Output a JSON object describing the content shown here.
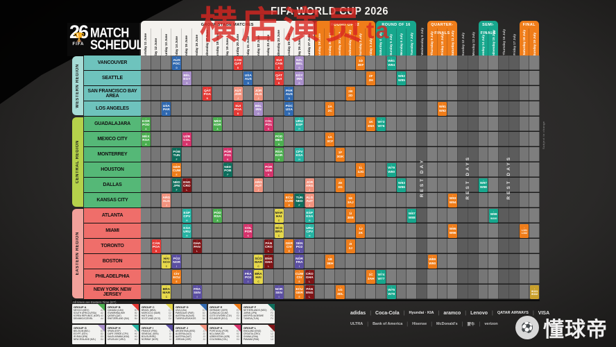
{
  "header": {
    "title": "FIFA WORLD CUP 2026",
    "logo_line1": "MATCH",
    "logo_line2": "SCHEDULE",
    "logo_year": "26",
    "logo_fifa": "FIFA"
  },
  "watermark": {
    "text": "横店演员",
    "suffix": "ta"
  },
  "footer": {
    "note": "All times are Eastern Time (ET)"
  },
  "fine_print": "Subject to change",
  "colors": {
    "A": "#4caf50",
    "B": "#e53935",
    "C": "#e6d84a",
    "D": "#3069b0",
    "E": "#ef7d1a",
    "F": "#0d6e5c",
    "G": "#a98fcb",
    "H": "#26b3a2",
    "I": "#5b4fa2",
    "J": "#f2937f",
    "K": "#d6336c",
    "L": "#7e1416",
    "R32": "#ef7d1a",
    "R16": "#17a78d",
    "QF": "#ef7d1a",
    "SF": "#17a78d",
    "BR": "#ef7d1a",
    "F_FINAL": "#c9a02c",
    "sec_group_bg": "#f4f2ee",
    "sec_orange": "#ef7d1a",
    "sec_teal": "#17a78d",
    "region_west": "#6ec3bd",
    "region_west_strip": "#a7dcd6",
    "region_central": "#55b877",
    "region_central_strip": "#b5d24b",
    "region_east": "#ef6e6a",
    "region_east_strip": "#f2a19b"
  },
  "sections": [
    {
      "key": "group",
      "label": "GROUP STAGE MATCHES",
      "start": 0,
      "span": 17,
      "style": "white"
    },
    {
      "key": "r32",
      "label": "ROUND OF 32",
      "start": 17,
      "span": 6,
      "style": "orange"
    },
    {
      "key": "r16",
      "label": "ROUND OF 16",
      "start": 23,
      "span": 4,
      "style": "teal"
    },
    {
      "key": "rest1",
      "label": "",
      "start": 27,
      "span": 1,
      "style": "rest"
    },
    {
      "key": "qf",
      "label": "QUARTER-FINALS",
      "start": 28,
      "span": 3,
      "style": "orange"
    },
    {
      "key": "rest2",
      "label": "",
      "start": 31,
      "span": 2,
      "style": "rest"
    },
    {
      "key": "sf",
      "label": "SEMI-FINALS",
      "start": 33,
      "span": 2,
      "style": "teal"
    },
    {
      "key": "rest3",
      "label": "",
      "start": 35,
      "span": 2,
      "style": "rest"
    },
    {
      "key": "final",
      "label": "FINAL",
      "start": 37,
      "span": 2,
      "style": "orange"
    }
  ],
  "dates": [
    "Thursday 11 June",
    "Friday 12 June",
    "Saturday 13 June",
    "Sunday 14 June",
    "Monday 15 June",
    "Tuesday 16 June",
    "Wednesday 17 June",
    "Thursday 18 June",
    "Friday 19 June",
    "Saturday 20 June",
    "Sunday 21 June",
    "Monday 22 June",
    "Tuesday 23 June",
    "Wednesday 24 June",
    "Thursday 25 June",
    "Friday 26 June",
    "Saturday 27 June",
    "Sunday 28 June",
    "Monday 29 June",
    "Tuesday 30 June",
    "Wednesday 1 July",
    "Thursday 2 July",
    "Friday 3 July",
    "Saturday 4 July",
    "Sunday 5 July",
    "Monday 6 July",
    "Tuesday 7 July",
    "Wednesday 8 July",
    "Thursday 9 July",
    "Friday 10 July",
    "Saturday 11 July",
    "Sunday 12 July",
    "Monday 13 July",
    "Tuesday 14 July",
    "Wednesday 15 July",
    "Thursday 16 July",
    "Friday 17 July",
    "Saturday 18 July",
    "Sunday 19 July"
  ],
  "rest_labels": [
    {
      "col": 27,
      "span": 1,
      "text": "REST DAY"
    },
    {
      "col": 31,
      "span": 2,
      "text": "REST DAYS"
    },
    {
      "col": 35,
      "span": 2,
      "text": "REST DAYS"
    }
  ],
  "regions": [
    {
      "name": "WESTERN REGION",
      "rows": 4
    },
    {
      "name": "CENTRAL REGION",
      "rows": 6
    },
    {
      "name": "EASTERN REGION",
      "rows": 6
    }
  ],
  "cities": [
    "VANCOUVER",
    "SEATTLE",
    "SAN FRANCISCO BAY AREA",
    "LOS ANGELES",
    "GUADALAJARA",
    "MEXICO CITY",
    "MONTERREY",
    "HOUSTON",
    "DALLAS",
    "KANSAS CITY",
    "ATLANTA",
    "MIAMI",
    "TORONTO",
    "BOSTON",
    "PHILADELPHIA",
    "NEW YORK NEW JERSEY"
  ],
  "cells": [
    [
      0,
      3,
      "D",
      "AUS",
      "POC"
    ],
    [
      0,
      9,
      "B",
      "CAN",
      "QAT"
    ],
    [
      0,
      13,
      "B",
      "SUI",
      "CAN"
    ],
    [
      0,
      15,
      "G",
      "NZL",
      "BEL"
    ],
    [
      0,
      21,
      "R32",
      "1D",
      "3EF"
    ],
    [
      0,
      24,
      "R16",
      "W81",
      "W84"
    ],
    [
      1,
      4,
      "G",
      "BEL",
      "EGY"
    ],
    [
      1,
      10,
      "D",
      "USA",
      "AUS"
    ],
    [
      1,
      13,
      "B",
      "QAT",
      "SUI"
    ],
    [
      1,
      15,
      "G",
      "EGY",
      "IRN"
    ],
    [
      1,
      22,
      "R32",
      "2F",
      "2H"
    ],
    [
      1,
      25,
      "R16",
      "W82",
      "W85"
    ],
    [
      2,
      6,
      "B",
      "QAT",
      "POA"
    ],
    [
      2,
      9,
      "J",
      "AUT",
      "JOR"
    ],
    [
      2,
      11,
      "J",
      "JOR",
      "ALG"
    ],
    [
      2,
      14,
      "D",
      "PAR",
      "AUS"
    ],
    [
      2,
      20,
      "R32",
      "2B",
      "2D"
    ],
    [
      3,
      2,
      "D",
      "USA",
      "PAR"
    ],
    [
      3,
      9,
      "B",
      "SUI",
      "POA"
    ],
    [
      3,
      11,
      "G",
      "BEL",
      "IRN"
    ],
    [
      3,
      14,
      "D",
      "POC",
      "USA"
    ],
    [
      3,
      18,
      "R32",
      "2A",
      "2C"
    ],
    [
      3,
      29,
      "QF",
      "W91",
      "W92"
    ],
    [
      4,
      0,
      "A",
      "KOR",
      "POD"
    ],
    [
      4,
      7,
      "A",
      "MEX",
      "KOR"
    ],
    [
      4,
      12,
      "K",
      "COL",
      "PO1"
    ],
    [
      4,
      15,
      "H",
      "URU",
      "ESP"
    ],
    [
      4,
      22,
      "R32",
      "1K",
      "3HA"
    ],
    [
      4,
      23,
      "R16",
      "W73",
      "W76"
    ],
    [
      5,
      0,
      "A",
      "MEX",
      "RSA"
    ],
    [
      5,
      4,
      "K",
      "UZB",
      "COL"
    ],
    [
      5,
      13,
      "A",
      "POD",
      "MEX"
    ],
    [
      5,
      18,
      "R32",
      "1A",
      "3CF"
    ],
    [
      6,
      3,
      "F",
      "POB",
      "TUN"
    ],
    [
      6,
      8,
      "K",
      "POR",
      "PO1"
    ],
    [
      6,
      13,
      "A",
      "RSA",
      "KOR"
    ],
    [
      6,
      15,
      "H",
      "CPV",
      "KSA"
    ],
    [
      6,
      19,
      "R32",
      "1F",
      "3GK"
    ],
    [
      7,
      3,
      "E",
      "GER",
      "CUW"
    ],
    [
      7,
      8,
      "F",
      "NED",
      "POB"
    ],
    [
      7,
      12,
      "K",
      "POR",
      "UZB"
    ],
    [
      7,
      21,
      "R32",
      "1L",
      "3JG"
    ],
    [
      7,
      24,
      "R16",
      "W79",
      "W80"
    ],
    [
      8,
      3,
      "F",
      "NED",
      "JPN"
    ],
    [
      8,
      4,
      "L",
      "ENG",
      "CRO"
    ],
    [
      8,
      11,
      "J",
      "ARG",
      "AUT"
    ],
    [
      8,
      16,
      "J",
      "JOR",
      "ARG"
    ],
    [
      8,
      19,
      "R32",
      "2E",
      "2G"
    ],
    [
      8,
      25,
      "R16",
      "W83",
      "W86"
    ],
    [
      8,
      33,
      "SF",
      "W97",
      "W98"
    ],
    [
      9,
      2,
      "J",
      "ARG",
      "ALG"
    ],
    [
      9,
      14,
      "E",
      "ECU",
      "CUW"
    ],
    [
      9,
      15,
      "F",
      "TUN",
      "NED"
    ],
    [
      9,
      16,
      "J",
      "ALG",
      "AUT"
    ],
    [
      9,
      20,
      "R32",
      "1E",
      "3AJ"
    ],
    [
      9,
      30,
      "QF",
      "W93",
      "W94"
    ],
    [
      10,
      4,
      "H",
      "ESP",
      "CPV"
    ],
    [
      10,
      7,
      "A",
      "POD",
      "RSA"
    ],
    [
      10,
      13,
      "C",
      "MAR",
      "HAI"
    ],
    [
      10,
      16,
      "H",
      "ESP",
      "KSA"
    ],
    [
      10,
      20,
      "R32",
      "1I",
      "3EB"
    ],
    [
      10,
      26,
      "R16",
      "W87",
      "W88"
    ],
    [
      10,
      34,
      "SF",
      "W99",
      "W100"
    ],
    [
      11,
      4,
      "H",
      "KSA",
      "URU"
    ],
    [
      11,
      10,
      "K",
      "COL",
      "POR"
    ],
    [
      11,
      13,
      "C",
      "SCO",
      "BRA"
    ],
    [
      11,
      16,
      "H",
      "URU",
      "CPV"
    ],
    [
      11,
      21,
      "R32",
      "1J",
      "2K"
    ],
    [
      11,
      30,
      "QF",
      "W95",
      "W96"
    ],
    [
      11,
      37,
      "BR",
      "L101",
      "L102"
    ],
    [
      12,
      1,
      "B",
      "CAN",
      "POA"
    ],
    [
      12,
      5,
      "L",
      "GHA",
      "PAN"
    ],
    [
      12,
      12,
      "L",
      "PAN",
      "CRO"
    ],
    [
      12,
      14,
      "E",
      "GER",
      "CIV"
    ],
    [
      12,
      15,
      "I",
      "SEN",
      "PO2"
    ],
    [
      12,
      20,
      "R32",
      "2I",
      "2J"
    ],
    [
      13,
      2,
      "C",
      "HAI",
      "SCO"
    ],
    [
      13,
      3,
      "I",
      "PO2",
      "NOR"
    ],
    [
      13,
      11,
      "C",
      "SCO",
      "MAR"
    ],
    [
      13,
      12,
      "L",
      "ENG",
      "GHA"
    ],
    [
      13,
      15,
      "I",
      "NOR",
      "FRA"
    ],
    [
      13,
      18,
      "R32",
      "1B",
      "3EH"
    ],
    [
      13,
      28,
      "QF",
      "W89",
      "W90"
    ],
    [
      14,
      3,
      "E",
      "CIV",
      "ECU"
    ],
    [
      14,
      10,
      "I",
      "FRA",
      "PO2"
    ],
    [
      14,
      11,
      "C",
      "BRA",
      "HAI"
    ],
    [
      14,
      15,
      "E",
      "CUW",
      "CIV"
    ],
    [
      14,
      16,
      "L",
      "CRO",
      "GHA"
    ],
    [
      14,
      22,
      "R32",
      "1C",
      "3AH"
    ],
    [
      14,
      23,
      "R16",
      "W74",
      "W77"
    ],
    [
      15,
      2,
      "C",
      "BRA",
      "MAR"
    ],
    [
      15,
      5,
      "I",
      "FRA",
      "SEN"
    ],
    [
      15,
      13,
      "I",
      "NOR",
      "SEN"
    ],
    [
      15,
      15,
      "E",
      "ECU",
      "GER"
    ],
    [
      15,
      16,
      "L",
      "PAN",
      "ENG"
    ],
    [
      15,
      19,
      "R32",
      "1G",
      "3DL"
    ],
    [
      15,
      24,
      "R16",
      "W75",
      "W78"
    ],
    [
      15,
      38,
      "F_FINAL",
      "W101",
      "W102"
    ]
  ],
  "groups": [
    {
      "name": "GROUP A",
      "color": "#4caf50",
      "teams": [
        [
          "MEXICO (MEX)",
          "A1"
        ],
        [
          "SOUTH AFRICA (RSA)",
          "A2"
        ],
        [
          "KOREA REPUBLIC (KOR)",
          "A3"
        ],
        [
          "DEN/MKD/CZE/IRL",
          "A4"
        ]
      ]
    },
    {
      "name": "GROUP B",
      "color": "#e53935",
      "teams": [
        [
          "CANADA (CAN)",
          "B1"
        ],
        [
          "ITA/NIR/WAL/BIH",
          "B2"
        ],
        [
          "QATAR (QAT)",
          "B3"
        ],
        [
          "SWITZERLAND (SUI)",
          "B4"
        ]
      ]
    },
    {
      "name": "GROUP C",
      "color": "#e6d84a",
      "teams": [
        [
          "BRAZIL (BRA)",
          "C1"
        ],
        [
          "MOROCCO (MAR)",
          "C2"
        ],
        [
          "HAITI (HAI)",
          "C3"
        ],
        [
          "SCOTLAND (SCO)",
          "C4"
        ]
      ]
    },
    {
      "name": "GROUP D",
      "color": "#3069b0",
      "teams": [
        [
          "USA (USA)",
          "D1"
        ],
        [
          "PARAGUAY (PAR)",
          "D2"
        ],
        [
          "AUSTRALIA (AUS)",
          "D3"
        ],
        [
          "TUR/ROU/SVK/KOS",
          "D4"
        ]
      ]
    },
    {
      "name": "GROUP E",
      "color": "#ef7d1a",
      "teams": [
        [
          "GERMANY (GER)",
          "E1"
        ],
        [
          "CURACAO (CUW)",
          "E2"
        ],
        [
          "COTE D'IVOIRE (CIV)",
          "E3"
        ],
        [
          "ECUADOR (ECU)",
          "E4"
        ]
      ]
    },
    {
      "name": "GROUP F",
      "color": "#0d6e5c",
      "teams": [
        [
          "NETHERLANDS (NED)",
          "F1"
        ],
        [
          "JAPAN (JPN)",
          "F2"
        ],
        [
          "UKR/POL/ALB/SWE",
          "F3"
        ],
        [
          "TUNISIA (TUN)",
          "F4"
        ]
      ]
    },
    {
      "name": "GROUP G",
      "color": "#a98fcb",
      "teams": [
        [
          "BELGIUM (BEL)",
          "G1"
        ],
        [
          "EGYPT (EGY)",
          "G2"
        ],
        [
          "IR IRAN (IRN)",
          "G3"
        ],
        [
          "NEW ZEALAND (NZL)",
          "G4"
        ]
      ]
    },
    {
      "name": "GROUP H",
      "color": "#26b3a2",
      "teams": [
        [
          "SPAIN (ESP)",
          "H1"
        ],
        [
          "CAPE VERDE (CPV)",
          "H2"
        ],
        [
          "SAUDI ARABIA (KSA)",
          "H3"
        ],
        [
          "URUGUAY (URU)",
          "H4"
        ]
      ]
    },
    {
      "name": "GROUP I",
      "color": "#5b4fa2",
      "teams": [
        [
          "FRANCE (FRA)",
          "I1"
        ],
        [
          "SENEGAL (SEN)",
          "I2"
        ],
        [
          "BOL/SUR/IRQ",
          "I3"
        ],
        [
          "NORWAY (NOR)",
          "I4"
        ]
      ]
    },
    {
      "name": "GROUP J",
      "color": "#f2937f",
      "teams": [
        [
          "ARGENTINA (ARG)",
          "J1"
        ],
        [
          "ALGERIA (ALG)",
          "J2"
        ],
        [
          "AUSTRIA (AUT)",
          "J3"
        ],
        [
          "JORDAN (JOR)",
          "J4"
        ]
      ]
    },
    {
      "name": "GROUP K",
      "color": "#d6336c",
      "teams": [
        [
          "PORTUGAL (POR)",
          "K1"
        ],
        [
          "NCL/JAM/COD",
          "K2"
        ],
        [
          "UZBEKISTAN (UZB)",
          "K3"
        ],
        [
          "COLOMBIA (COL)",
          "K4"
        ]
      ]
    },
    {
      "name": "GROUP L",
      "color": "#7e1416",
      "teams": [
        [
          "ENGLAND (ENG)",
          "L1"
        ],
        [
          "CROATIA (CRO)",
          "L2"
        ],
        [
          "GHANA (GHA)",
          "L3"
        ],
        [
          "PANAMA (PAN)",
          "L4"
        ]
      ]
    }
  ],
  "sponsors": {
    "row1": [
      "adidas",
      "Coca-Cola",
      "Hyundai · KIA",
      "aramco",
      "Lenovo",
      "QATAR AIRWAYS",
      "VISA"
    ],
    "row2": [
      "ULTRA",
      "Bank of America",
      "Hisense",
      "McDonald's",
      "蒙牛",
      "verizon"
    ]
  },
  "dqd": {
    "name": "懂球帝",
    "ball": "⚽"
  }
}
